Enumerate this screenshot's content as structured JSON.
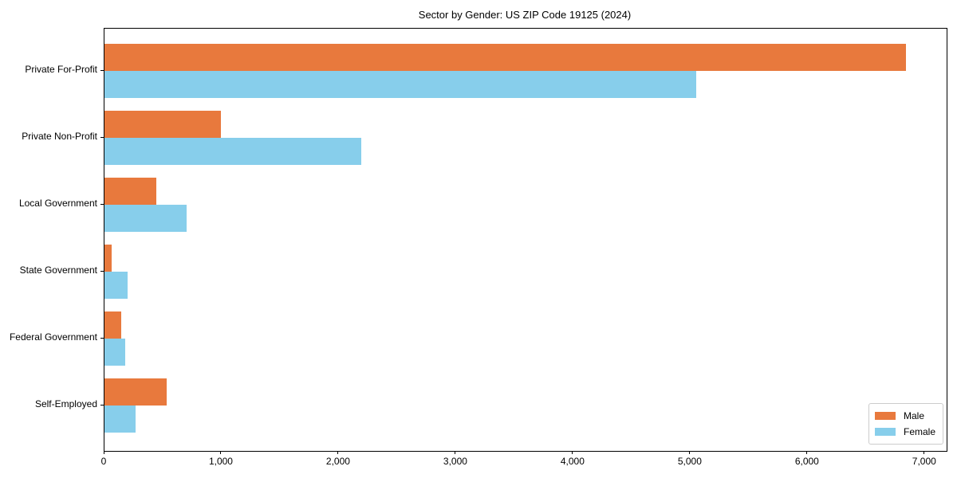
{
  "chart_data": {
    "type": "bar",
    "orientation": "horizontal",
    "title": "Sector by Gender: US ZIP Code 19125 (2024)",
    "categories": [
      "Private For-Profit",
      "Private Non-Profit",
      "Local Government",
      "State Government",
      "Federal Government",
      "Self-Employed"
    ],
    "series": [
      {
        "name": "Male",
        "color": "#E8793D",
        "values": [
          6840,
          990,
          445,
          60,
          140,
          530
        ]
      },
      {
        "name": "Female",
        "color": "#87CEEB",
        "values": [
          5050,
          2190,
          700,
          195,
          180,
          265
        ]
      }
    ],
    "xlabel": "",
    "ylabel": "",
    "xlim": [
      0,
      7185
    ],
    "xticks": [
      0,
      1000,
      2000,
      3000,
      4000,
      5000,
      6000,
      7000
    ],
    "xtick_labels": [
      "0",
      "1,000",
      "2,000",
      "3,000",
      "4,000",
      "5,000",
      "6,000",
      "7,000"
    ],
    "grid": false,
    "legend": {
      "position": "lower right"
    },
    "colors": {
      "axis": "#000000",
      "legend_border": "#cccccc",
      "background": "#ffffff"
    }
  }
}
